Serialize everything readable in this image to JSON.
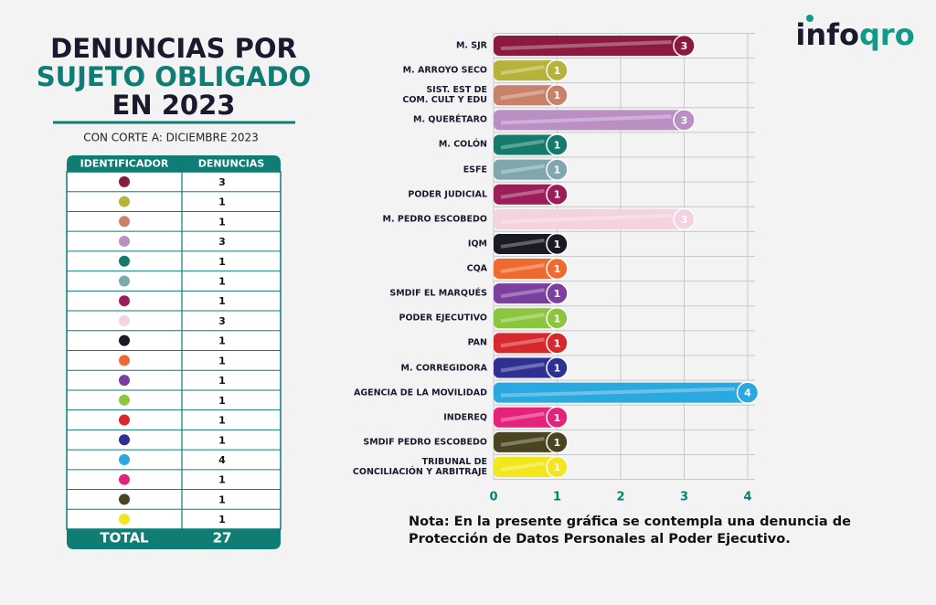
{
  "header": {
    "title_lines": [
      "DENUNCIAS POR",
      "SUJETO OBLIGADO",
      "EN 2023"
    ],
    "subtitle": "CON CORTE A: DICIEMBRE 2023"
  },
  "logo": [
    "info",
    "qro"
  ],
  "table": {
    "header": [
      "IDENTIFICADOR",
      "DENUNCIAS"
    ],
    "rows": [
      3,
      1,
      1,
      3,
      1,
      1,
      1,
      3,
      1,
      1,
      1,
      1,
      1,
      1,
      4,
      1,
      1,
      1
    ],
    "total": [
      "TOTAL",
      27
    ]
  },
  "chart_data": {
    "type": "hbar",
    "categories": [
      "M. SJR",
      "M. ARROYO SECO",
      "SIST. EST DE\nCOM. CULT Y EDU",
      "M. QUERÉTARO",
      "M. COLÓN",
      "ESFE",
      "PODER JUDICIAL",
      "M. PEDRO ESCOBEDO",
      "IQM",
      "CQA",
      "SMDIF EL MARQUÉS",
      "PODER EJECUTIVO",
      "PAN",
      "M. CORREGIDORA",
      "AGENCIA DE LA MOVILIDAD",
      "INDEREQ",
      "SMDIF PEDRO ESCOBEDO",
      "TRIBUNAL DE\nCONCILIACIÓN Y ARBITRAJE"
    ],
    "values": [
      3,
      1,
      1,
      3,
      1,
      1,
      1,
      3,
      1,
      1,
      1,
      1,
      1,
      1,
      4,
      1,
      1,
      1
    ],
    "colors": [
      "#8b1a3f",
      "#b5b33a",
      "#c9826a",
      "#b98fc4",
      "#137a6c",
      "#7fa8ae",
      "#9b1e5a",
      "#f3d3df",
      "#1a1a24",
      "#ee6a2e",
      "#7b3fa0",
      "#8cc63f",
      "#d7282e",
      "#2e3192",
      "#2aa8e0",
      "#e6237a",
      "#4a4420",
      "#f2e61c"
    ],
    "xlim": [
      0,
      4
    ],
    "xticks": [
      0,
      1,
      2,
      3,
      4
    ],
    "grid": true
  },
  "note": "Nota: En la presente gráfica se contempla una denuncia de Protección de Datos Personales al Poder Ejecutivo."
}
